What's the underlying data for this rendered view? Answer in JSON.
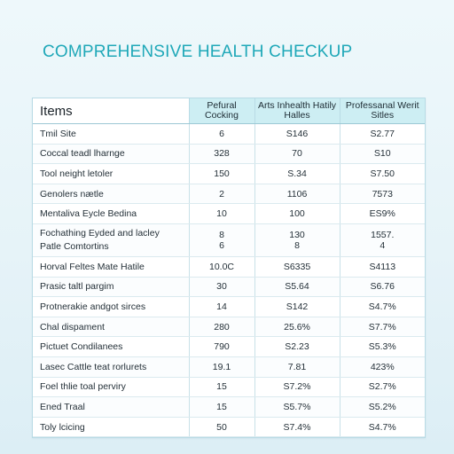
{
  "page": {
    "title": "COMPREHENSIVE HEALTH CHECKUP"
  },
  "table": {
    "headers": [
      "Items",
      "Pefural Cocking",
      "Arts Inhealth Hatily Halles",
      "Professanal Werit Sitles"
    ],
    "rows": [
      {
        "item": "Tmil Site",
        "c1": "6",
        "c2": "S146",
        "c3": "S2.77"
      },
      {
        "item": "Coccal teadl lharnge",
        "c1": "328",
        "c2": "70",
        "c3": "S10"
      },
      {
        "item": "Tool neight letoler",
        "c1": "150",
        "c2": "S.34",
        "c3": "S7.50"
      },
      {
        "item": "Genolers nætle",
        "c1": "2",
        "c2": "1106",
        "c3": "7573"
      },
      {
        "item": "Mentaliva Eycle Bedina",
        "c1": "10",
        "c2": "100",
        "c3": "ES9%"
      },
      {
        "item": "Fochathing Eyded and lacley\nPatle Comtortins",
        "c1": "8\n6",
        "c2": "130\n8",
        "c3": "1557.\n4"
      },
      {
        "item": "Horval Feltes Mate Hatile",
        "c1": "10.0C",
        "c2": "S6335",
        "c3": "S4113"
      },
      {
        "item": "Prasic taltl pargim",
        "c1": "30",
        "c2": "S5.64",
        "c3": "S6.76"
      },
      {
        "item": "Protnerakie andgot sirces",
        "c1": "14",
        "c2": "S142",
        "c3": "S4.7%"
      },
      {
        "item": "Chal dispament",
        "c1": "280",
        "c2": "25.6%",
        "c3": "S7.7%"
      },
      {
        "item": "Pictuet Condilanees",
        "c1": "790",
        "c2": "S2.23",
        "c3": "S5.3%"
      },
      {
        "item": "Lasec Cattle teat rorlurets",
        "c1": "19.1",
        "c2": "7.81",
        "c3": "423%"
      },
      {
        "item": "Foel thlie toal perviry",
        "c1": "15",
        "c2": "S7.2%",
        "c3": "S2.7%"
      },
      {
        "item": "Ened Traal",
        "c1": "15",
        "c2": "S5.7%",
        "c3": "S5.2%"
      },
      {
        "item": "Toly lcicing",
        "c1": "50",
        "c2": "S7.4%",
        "c3": "S4.7%"
      }
    ]
  }
}
